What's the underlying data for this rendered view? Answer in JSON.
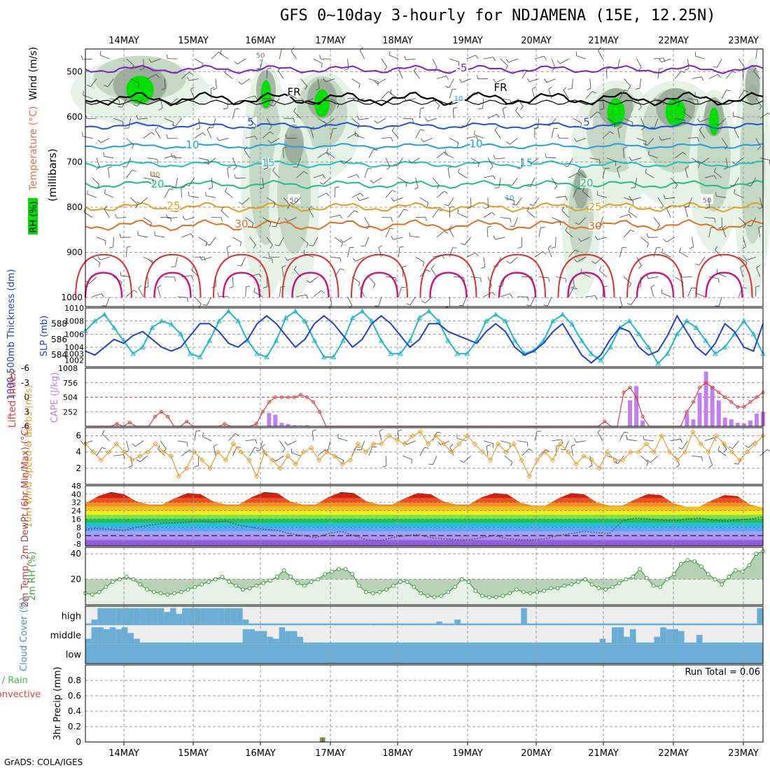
{
  "title": "GFS 0~10day 3-hourly for NDJAMENA (15E, 12.25N)",
  "footer": "GrADS: COLA/IGES",
  "run_total_label": "Run Total = 0.06",
  "colors": {
    "rh_dark": "#8ca08c",
    "rh_mid": "#c4d8c4",
    "rh_light": "#e6f2e6",
    "rh_bright": "#00e000",
    "slp": "#22b8c8",
    "thickness": "#2040d0",
    "cape": "#c080f0",
    "li": "#e04040",
    "wind10m": "#e8a030",
    "rh2m": "#40a040",
    "cloud": "#6aaed6",
    "precip_rain": "#40c040",
    "precip_conv": "#e04040"
  },
  "chart_data": [
    {
      "panel": "upper_air",
      "type": "heatmap",
      "title": "Wind (m/s), Temperature (°C), RH (%)",
      "ylabel": "(millibars)",
      "legend_labels": [
        "Wind (m/s)",
        "Temperature (°C)",
        "RH (%)"
      ],
      "y_ticks": [
        500,
        600,
        700,
        800,
        900,
        1000
      ],
      "ylim": [
        450,
        1020
      ],
      "x_ticks": [
        "14MAY",
        "15MAY",
        "16MAY",
        "17MAY",
        "18MAY",
        "19MAY",
        "20MAY",
        "21MAY",
        "22MAY",
        "23MAY"
      ],
      "isotherms": [
        {
          "label": "-5",
          "level": 495,
          "color": "#8020c0",
          "amp": 6
        },
        {
          "label": "FR",
          "level": 560,
          "color": "#000000",
          "amp": 10
        },
        {
          "label": "5",
          "level": 620,
          "color": "#2050e0",
          "amp": 5
        },
        {
          "label": "10",
          "level": 665,
          "color": "#20a0e0",
          "amp": 4
        },
        {
          "label": "15",
          "level": 705,
          "color": "#20c0c0",
          "amp": 5
        },
        {
          "label": "20",
          "level": 750,
          "color": "#20c080",
          "amp": 6
        },
        {
          "label": "25",
          "level": 800,
          "color": "#e0a020",
          "amp": 7
        },
        {
          "label": "30",
          "level": 840,
          "color": "#e07020",
          "amp": 8
        }
      ],
      "contour_labels": [
        "-5",
        "FR",
        "FR",
        "5",
        "5",
        "10",
        "10",
        "15",
        "15",
        "20",
        "20",
        "25",
        "25",
        "30",
        "30",
        "50",
        "50",
        "30",
        "10",
        "50",
        "10"
      ]
    },
    {
      "panel": "slp_thickness",
      "type": "line",
      "ylabel_left": "1000-500mb Thickness (dm)",
      "ylabel_right": "SLP (mb)",
      "left_ticks": [
        584,
        586,
        588
      ],
      "right_ticks": [
        1003,
        1004,
        1006,
        1008,
        1010,
        1002
      ],
      "series": [
        {
          "name": "SLP",
          "values": [
            1006.5,
            1008,
            1009,
            1007,
            1005,
            1003,
            1004,
            1007,
            1008,
            1007.5,
            1006,
            1003,
            1002.5,
            1005,
            1008,
            1009.5,
            1008,
            1005,
            1003,
            1002.5,
            1005,
            1008.5,
            1009.5,
            1008,
            1005,
            1002.5,
            1002.5,
            1005,
            1008.5,
            1009.5,
            1008,
            1005,
            1003,
            1003,
            1005,
            1008.5,
            1009.5,
            1008,
            1005,
            1003,
            1003,
            1005,
            1008,
            1009,
            1008,
            1005,
            1003,
            1003.5,
            1005,
            1008,
            1009,
            1007.5,
            1005,
            1003,
            1002,
            1004,
            1007,
            1008,
            1006,
            1004,
            1001.5,
            1003,
            1006,
            1008,
            1007,
            1005,
            1003,
            1004,
            1006,
            1008,
            1006,
            1003
          ]
        },
        {
          "name": "Thickness",
          "values": [
            584.5,
            584,
            585,
            586,
            585.5,
            586.5,
            587,
            586,
            585,
            584.5,
            585,
            586.5,
            588,
            588,
            587,
            585.5,
            585,
            586,
            588,
            589,
            588,
            586.5,
            585,
            586,
            588,
            589,
            588,
            586.5,
            585,
            586,
            588,
            589,
            588,
            586.5,
            585,
            586,
            588,
            588,
            587,
            586.5,
            586,
            585.5,
            587,
            588,
            587,
            585,
            584,
            584.5,
            585.5,
            587,
            588,
            586,
            584,
            583,
            584,
            586,
            587.5,
            587,
            585,
            584,
            584.5,
            586.5,
            589,
            587,
            585,
            584,
            585.5,
            588,
            587,
            585,
            584.5,
            588
          ]
        }
      ]
    },
    {
      "panel": "cape_li",
      "type": "bar",
      "ylabel_left": "Lifted Index",
      "ylabel_right": "CAPE (J/kg)",
      "li_ticks": [
        -6,
        -3,
        0,
        3,
        6
      ],
      "li_tick_labels": [
        "-6",
        "-3",
        "0",
        "3",
        "6"
      ],
      "cape_ticks": [
        252,
        504,
        756,
        1008
      ],
      "cape_values": [
        0,
        0,
        0,
        0,
        0,
        0,
        0,
        0,
        0,
        0,
        0,
        0,
        0,
        0,
        0,
        0,
        0,
        0,
        0,
        0,
        0,
        0,
        0,
        0,
        0,
        0,
        0,
        0,
        0,
        230,
        200,
        60,
        40,
        20,
        15,
        20,
        0,
        0,
        0,
        0,
        0,
        0,
        0,
        0,
        0,
        0,
        0,
        0,
        0,
        0,
        0,
        0,
        0,
        0,
        0,
        0,
        0,
        0,
        0,
        0,
        0,
        0,
        0,
        0,
        0,
        0,
        0,
        0,
        0,
        0,
        0,
        0,
        0,
        0,
        0,
        0,
        0,
        0,
        0,
        0,
        0,
        0,
        0,
        0,
        0,
        0,
        450,
        700,
        100,
        0,
        0,
        0,
        0,
        0,
        0,
        220,
        120,
        580,
        950,
        700,
        450,
        150,
        120,
        60,
        50,
        100,
        220,
        250
      ],
      "li_values": [
        6,
        6,
        6,
        6,
        6,
        5.5,
        6,
        5.2,
        6,
        6,
        6,
        4,
        3,
        4,
        6,
        6,
        5,
        6,
        6,
        6,
        6,
        6,
        5.5,
        6,
        6,
        6,
        6,
        5.5,
        3,
        1,
        0,
        0,
        0,
        0,
        -0.5,
        0,
        1,
        3,
        6,
        6,
        6,
        6,
        6,
        6,
        6,
        6,
        6,
        6,
        6,
        6,
        6,
        6,
        6,
        6,
        6,
        6,
        6,
        6,
        6,
        6,
        6,
        6,
        6,
        6,
        6,
        6,
        6,
        6,
        6,
        6,
        6,
        6,
        6,
        6,
        6,
        6,
        6,
        6,
        6,
        6,
        6,
        6,
        5,
        6,
        6,
        -1,
        -2,
        0,
        4,
        6,
        6,
        6,
        6,
        6,
        6,
        3,
        1,
        -2,
        -3,
        -2,
        -1,
        0,
        1,
        2,
        2,
        1,
        0,
        -1
      ]
    },
    {
      "panel": "wind10m",
      "type": "line",
      "ylabel": "10m Wind Speed & Barbs (m/s)",
      "y_ticks": [
        2,
        4,
        6
      ],
      "ylim": [
        0,
        7
      ],
      "values": [
        5,
        4,
        3,
        4,
        5,
        4,
        3,
        3.5,
        4,
        5,
        4,
        3.5,
        1,
        2,
        4,
        3,
        2,
        4,
        3,
        5,
        4,
        3,
        1,
        4,
        3,
        2,
        3.5,
        2.5,
        4,
        4.5,
        3,
        4,
        3.5,
        2.5,
        3,
        5,
        4,
        5,
        5,
        6,
        5.5,
        5,
        6,
        6.5,
        5,
        6,
        5,
        4,
        5,
        6,
        5,
        4,
        3,
        5,
        4,
        5,
        3,
        1,
        3,
        4,
        3,
        5,
        4,
        2.5,
        3.5,
        3,
        2,
        4,
        3,
        3,
        4,
        4,
        5,
        4,
        6,
        4,
        3,
        4,
        6.5,
        5,
        4,
        6,
        5,
        4,
        3,
        4,
        5,
        6
      ]
    },
    {
      "panel": "temp2m",
      "type": "area",
      "ylabel": "2m Temp, 2m DewPt (6hr Min/Max) (°C)",
      "y_ticks": [
        -8,
        0,
        8,
        16,
        24,
        32,
        40,
        48
      ],
      "y_tick_labels": [
        "-8",
        "0",
        "8",
        "16",
        "24",
        "32",
        "40",
        "48"
      ],
      "temp_values": [
        31,
        38,
        42,
        40,
        33,
        30,
        30,
        36,
        41,
        40,
        33,
        30,
        30,
        37,
        42,
        41,
        33,
        30,
        30,
        37,
        42,
        41,
        33,
        30,
        30,
        36,
        41,
        40,
        33,
        30,
        30,
        37,
        41,
        40,
        32,
        29,
        29,
        36,
        41,
        40,
        32,
        29,
        29,
        35,
        40,
        39,
        31,
        28,
        28,
        34,
        39,
        38,
        30,
        27
      ],
      "dew_values": [
        6,
        7,
        6,
        5,
        8,
        10,
        12,
        12,
        13,
        14,
        13,
        14,
        10,
        8,
        6,
        5,
        2,
        0,
        -2,
        2,
        4,
        0,
        -4,
        -5,
        -2,
        0,
        1,
        -2,
        -3,
        -4,
        -4,
        -2,
        0,
        -3,
        -4,
        -4,
        -3,
        0,
        2,
        4,
        3,
        2,
        14,
        17,
        16,
        15,
        14,
        16,
        17,
        15,
        14,
        15,
        16,
        18
      ]
    },
    {
      "panel": "rh2m",
      "type": "area",
      "ylabel": "2m RH (%)",
      "y_ticks": [
        20,
        40
      ],
      "ylim": [
        0,
        45
      ],
      "values": [
        9,
        8,
        10,
        14,
        18,
        20,
        22,
        20,
        16,
        12,
        10,
        9,
        8,
        9,
        10,
        12,
        14,
        16,
        18,
        20,
        22,
        18,
        15,
        12,
        13,
        15,
        17,
        19,
        22,
        27,
        22,
        17,
        15,
        18,
        20,
        24,
        26,
        28,
        28,
        24,
        15,
        10,
        9,
        10,
        12,
        15,
        18,
        18,
        14,
        9,
        7,
        6,
        7,
        10,
        14,
        20,
        18,
        11,
        7,
        6,
        6,
        7,
        9,
        12,
        10,
        9,
        10,
        11,
        13,
        13,
        15,
        16,
        18,
        20,
        16,
        13,
        12,
        14,
        17,
        20,
        22,
        28,
        21,
        15,
        14,
        20,
        24,
        32,
        35,
        34,
        30,
        24,
        20,
        16,
        22,
        27,
        26,
        31,
        40,
        42
      ]
    },
    {
      "panel": "cloud",
      "type": "bar",
      "ylabel": "Cloud Cover (%)",
      "rows": [
        "high",
        "middle",
        "low"
      ],
      "high": [
        10,
        30,
        90,
        90,
        90,
        90,
        90,
        90,
        90,
        90,
        90,
        90,
        90,
        70,
        90,
        60,
        90,
        90,
        90,
        90,
        90,
        90,
        90,
        90,
        90,
        90,
        30,
        10,
        10,
        10,
        10,
        10,
        10,
        10,
        10,
        10,
        10,
        10,
        10,
        10,
        10,
        10,
        10,
        10,
        10,
        10,
        10,
        10,
        10,
        10,
        10,
        10,
        10,
        10,
        10,
        10,
        10,
        10,
        20,
        10,
        10,
        30,
        10,
        10,
        10,
        10,
        10,
        10,
        10,
        10,
        10,
        10,
        90,
        10,
        10,
        10,
        10,
        10,
        10,
        10,
        10,
        10,
        10,
        10,
        10,
        10,
        10,
        10,
        10,
        10,
        10,
        10,
        10,
        10,
        10,
        10,
        10,
        10,
        10,
        10,
        10,
        10,
        10,
        10,
        10,
        10,
        10,
        10,
        10,
        10,
        10,
        90
      ],
      "middle": [
        30,
        90,
        90,
        80,
        90,
        80,
        90,
        60,
        30,
        10,
        10,
        10,
        10,
        10,
        10,
        10,
        10,
        10,
        10,
        10,
        10,
        10,
        10,
        10,
        10,
        10,
        80,
        80,
        70,
        70,
        40,
        30,
        90,
        70,
        70,
        40,
        10,
        10,
        10,
        10,
        10,
        10,
        10,
        10,
        10,
        10,
        10,
        10,
        10,
        10,
        10,
        10,
        10,
        10,
        10,
        10,
        10,
        10,
        10,
        10,
        10,
        10,
        10,
        10,
        10,
        10,
        10,
        10,
        10,
        10,
        10,
        10,
        10,
        10,
        10,
        10,
        10,
        10,
        10,
        10,
        10,
        10,
        10,
        10,
        10,
        30,
        10,
        90,
        90,
        40,
        80,
        10,
        10,
        10,
        40,
        90,
        80,
        80,
        70,
        10,
        10,
        50,
        10,
        10,
        10,
        10,
        10,
        10,
        10,
        10,
        10,
        10
      ],
      "low": [
        0,
        0,
        0,
        0,
        0,
        0,
        0,
        0,
        0,
        0,
        0,
        0,
        0,
        0,
        0,
        0,
        0,
        0,
        0,
        0,
        0,
        0,
        0,
        0,
        0,
        0,
        0,
        0,
        0,
        0,
        0,
        0,
        0,
        0,
        0,
        0,
        0,
        0,
        0,
        0,
        0,
        0,
        0,
        0,
        0,
        0,
        0,
        0,
        0,
        0,
        0,
        0,
        0,
        0,
        0,
        0,
        0,
        0,
        0,
        0,
        0,
        0,
        0,
        0,
        0,
        0,
        0,
        0,
        0,
        0,
        0,
        0,
        0,
        0,
        0,
        0,
        0,
        0,
        0,
        0,
        0,
        0,
        0,
        0,
        0,
        0,
        0,
        0,
        0,
        0,
        0,
        0,
        0,
        0,
        0,
        0,
        0,
        0,
        0,
        0,
        0,
        0,
        0,
        0,
        0,
        0,
        0,
        0,
        0,
        0,
        0,
        0
      ]
    },
    {
      "panel": "precip",
      "type": "bar",
      "ylabel": "3hr Precip (mm)",
      "legend_labels": [
        "Total / Rain",
        "Convective"
      ],
      "y_ticks": [
        0,
        0.2,
        0.4,
        0.6,
        0.8
      ],
      "y_tick_labels": [
        "0",
        "0.2",
        "0.4",
        "0.6",
        "0.8"
      ],
      "ylim": [
        0,
        1
      ],
      "events": [
        {
          "index": 28,
          "total": 0.06,
          "convective": 0.06
        }
      ]
    }
  ],
  "x_axis_top": [
    "14MAY",
    "15MAY",
    "16MAY",
    "17MAY",
    "18MAY",
    "19MAY",
    "20MAY",
    "21MAY",
    "22MAY",
    "23MAY"
  ],
  "x_axis_bottom": [
    "14MAY",
    "15MAY",
    "16MAY",
    "17MAY",
    "18MAY",
    "19MAY",
    "20MAY",
    "21MAY",
    "22MAY",
    "23MAY"
  ]
}
